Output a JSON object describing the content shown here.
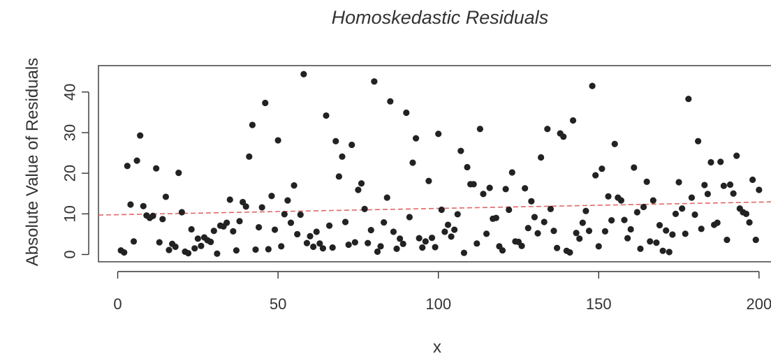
{
  "chart_data": {
    "type": "scatter",
    "title": "Homoskedastic Residuals",
    "xlabel": "x",
    "ylabel": "Absolute Value of Residuals",
    "xlim": [
      -6,
      207
    ],
    "ylim": [
      -1.8,
      46.5
    ],
    "x_ticks": [
      0,
      50,
      100,
      150,
      200
    ],
    "y_ticks": [
      0,
      10,
      20,
      30,
      40
    ],
    "x_tick_labels": [
      "0",
      "50",
      "100",
      "150",
      "200"
    ],
    "y_tick_labels": [
      "0",
      "10",
      "20",
      "30",
      "40"
    ],
    "grid": false,
    "legend": "none",
    "point_color": "#222222",
    "trend_color": "#e06666",
    "trend_line": {
      "style": "dashed",
      "x": [
        -6,
        207
      ],
      "y": [
        9.7,
        13.0
      ]
    },
    "series": [
      {
        "x": [
          1,
          2,
          3,
          4,
          5,
          6,
          7,
          8,
          9,
          10,
          11,
          12,
          13,
          14,
          15,
          16,
          17,
          18,
          19,
          20,
          21,
          22,
          23,
          24,
          25,
          26,
          27,
          28,
          29,
          30,
          31,
          32,
          33,
          34,
          35,
          36,
          37,
          38,
          39,
          40,
          41,
          42,
          43,
          44,
          45,
          46,
          47,
          48,
          49,
          50,
          51,
          52,
          53,
          54,
          55,
          56,
          57,
          58,
          59,
          60,
          61,
          62,
          63,
          64,
          65,
          66,
          67,
          68,
          69,
          70,
          71,
          72,
          73,
          74,
          75,
          76,
          77,
          78,
          79,
          80,
          81,
          82,
          83,
          84,
          85,
          86,
          87,
          88,
          89,
          90,
          91,
          92,
          93,
          94,
          95,
          96,
          97,
          98,
          99,
          100,
          101,
          102,
          103,
          104,
          105,
          106,
          107,
          108,
          109,
          110,
          111,
          112,
          113,
          114,
          115,
          116,
          117,
          118,
          119,
          120,
          121,
          122,
          123,
          124,
          125,
          126,
          127,
          128,
          129,
          130,
          131,
          132,
          133,
          134,
          135,
          136,
          137,
          138,
          139,
          140,
          141,
          142,
          143,
          144,
          145,
          146,
          147,
          148,
          149,
          150,
          151,
          152,
          153,
          154,
          155,
          156,
          157,
          158,
          159,
          160,
          161,
          162,
          163,
          164,
          165,
          166,
          167,
          168,
          169,
          170,
          171,
          172,
          173,
          174,
          175,
          176,
          177,
          178,
          179,
          180,
          181,
          182,
          183,
          184,
          185,
          186,
          187,
          188,
          189,
          190,
          191,
          192,
          193,
          194,
          195,
          196,
          197,
          198,
          199,
          200
        ],
        "y": [
          1.0,
          0.5,
          21.8,
          12.3,
          3.2,
          23.1,
          29.3,
          11.9,
          9.6,
          9.0,
          9.5,
          21.2,
          3.0,
          8.7,
          14.2,
          1.1,
          2.6,
          1.9,
          20.1,
          10.4,
          0.7,
          0.3,
          6.2,
          1.5,
          3.9,
          2.1,
          4.2,
          3.5,
          3.1,
          5.8,
          0.2,
          7.1,
          6.9,
          7.8,
          13.5,
          5.7,
          1.0,
          8.2,
          12.9,
          11.8,
          24.1,
          31.9,
          1.2,
          6.7,
          11.6,
          37.3,
          1.3,
          14.4,
          6.1,
          28.1,
          2.0,
          9.9,
          13.3,
          7.8,
          17.0,
          5.0,
          9.8,
          44.4,
          2.8,
          4.5,
          1.9,
          5.6,
          2.7,
          1.5,
          34.2,
          7.1,
          1.7,
          27.9,
          19.2,
          24.1,
          8.0,
          2.4,
          27.0,
          3.0,
          15.9,
          17.5,
          11.2,
          2.8,
          6.0,
          42.6,
          0.7,
          2.0,
          7.9,
          14.0,
          37.7,
          5.6,
          1.4,
          3.9,
          2.6,
          34.9,
          9.2,
          22.6,
          28.6,
          4.0,
          1.7,
          3.2,
          18.1,
          4.1,
          1.8,
          29.7,
          11.0,
          5.6,
          7.3,
          4.4,
          6.1,
          9.9,
          25.5,
          0.4,
          21.5,
          17.3,
          17.3,
          2.7,
          30.9,
          14.9,
          5.1,
          16.4,
          8.8,
          9.0,
          2.0,
          1.0,
          16.1,
          11.0,
          20.2,
          3.2,
          3.1,
          2.1,
          16.3,
          6.5,
          13.1,
          9.2,
          5.2,
          23.9,
          8.0,
          30.9,
          11.2,
          5.8,
          1.6,
          29.8,
          29.0,
          0.9,
          0.5,
          33.0,
          5.3,
          3.9,
          7.8,
          10.7,
          5.8,
          41.5,
          19.5,
          2.0,
          21.1,
          5.7,
          14.3,
          8.4,
          27.2,
          14.0,
          13.3,
          8.5,
          4.0,
          6.2,
          21.4,
          10.4,
          1.4,
          11.7,
          17.9,
          3.2,
          13.3,
          2.9,
          7.2,
          0.9,
          5.9,
          0.6,
          4.9,
          10.0,
          17.8,
          11.3,
          5.1,
          38.3,
          14.0,
          9.8,
          27.9,
          6.3,
          17.1,
          14.9,
          22.7,
          7.3,
          7.8,
          22.8,
          16.9,
          3.6,
          17.2,
          15.0,
          24.3,
          11.3,
          10.4,
          10.0,
          7.9,
          18.4,
          3.6,
          15.9
        ]
      }
    ]
  }
}
